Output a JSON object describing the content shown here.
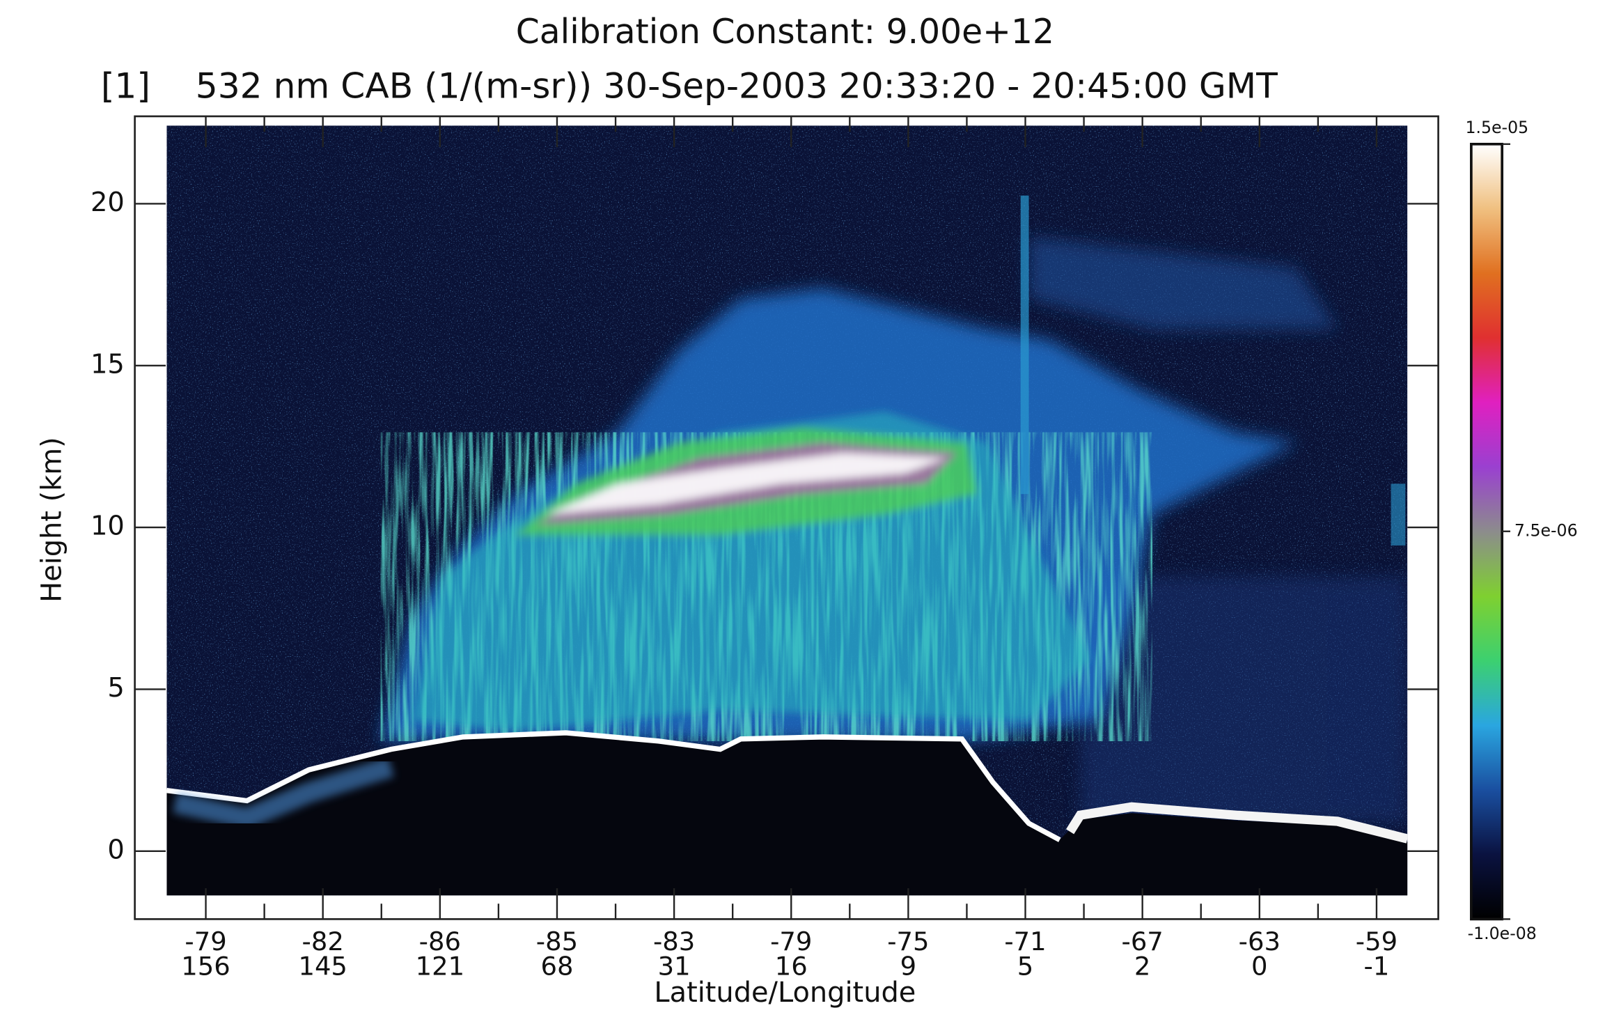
{
  "chart_data": {
    "type": "heatmap",
    "title": "Calibration Constant: 9.00e+12",
    "panel": "[1]",
    "subtitle": "532 nm CAB (1/(m-sr)) 30-Sep-2003 20:33:20 - 20:45:00 GMT",
    "y_label": "Height (km)",
    "x_label": "Latitude/Longitude",
    "ylim": [
      -2.1,
      22.7
    ],
    "yticks": [
      0,
      5,
      10,
      15,
      20
    ],
    "xticks": [
      {
        "latitude": -79,
        "longitude": 156
      },
      {
        "latitude": -82,
        "longitude": 145
      },
      {
        "latitude": -86,
        "longitude": 121
      },
      {
        "latitude": -85,
        "longitude": 68
      },
      {
        "latitude": -83,
        "longitude": 31
      },
      {
        "latitude": -79,
        "longitude": 16
      },
      {
        "latitude": -75,
        "longitude": 9
      },
      {
        "latitude": -71,
        "longitude": 5
      },
      {
        "latitude": -67,
        "longitude": 2
      },
      {
        "latitude": -63,
        "longitude": 0
      },
      {
        "latitude": -59,
        "longitude": -1
      }
    ],
    "colorbar": {
      "lim": [
        -1e-08,
        1.5e-05
      ],
      "ticks": [
        {
          "value": 1.5e-05,
          "label": "1.5e-05"
        },
        {
          "value": 7.5e-06,
          "label": "7.5e-06"
        },
        {
          "value": -1e-08,
          "label": "-1.0e-08"
        }
      ],
      "colors": [
        "#000000",
        "#0a1240",
        "#1a4fa0",
        "#2aa6e0",
        "#3cd070",
        "#7fd030",
        "#8c8c8c",
        "#9a40d0",
        "#e020c0",
        "#e03030",
        "#e07020",
        "#f0c080",
        "#ffffff"
      ]
    }
  }
}
